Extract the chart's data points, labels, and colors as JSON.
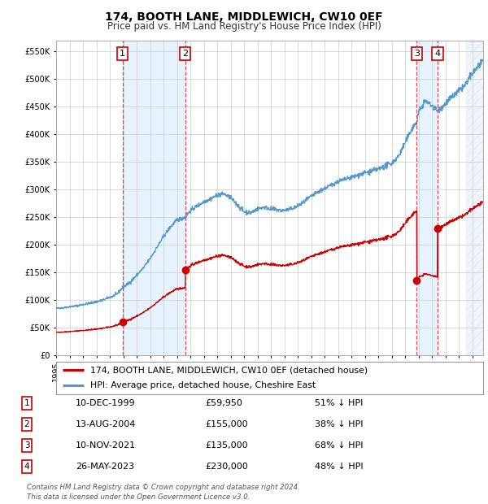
{
  "title": "174, BOOTH LANE, MIDDLEWICH, CW10 0EF",
  "subtitle": "Price paid vs. HM Land Registry's House Price Index (HPI)",
  "ytick_values": [
    0,
    50000,
    100000,
    150000,
    200000,
    250000,
    300000,
    350000,
    400000,
    450000,
    500000,
    550000
  ],
  "ylim": [
    0,
    570000
  ],
  "xlim_start": 1995.0,
  "xlim_end": 2026.8,
  "hpi_color": "#5599cc",
  "hpi_fill_color": "#cce0f0",
  "sale_color": "#cc0000",
  "dashed_color": "#dd3333",
  "background_color": "#ffffff",
  "legend_label_sale": "174, BOOTH LANE, MIDDLEWICH, CW10 0EF (detached house)",
  "legend_label_hpi": "HPI: Average price, detached house, Cheshire East",
  "sales": [
    {
      "id": 1,
      "date_num": 1999.94,
      "price": 59950,
      "hpi_at_sale": 122347
    },
    {
      "id": 2,
      "date_num": 2004.62,
      "price": 155000,
      "hpi_at_sale": 250000
    },
    {
      "id": 3,
      "date_num": 2021.86,
      "price": 135000,
      "hpi_at_sale": 421875
    },
    {
      "id": 4,
      "date_num": 2023.4,
      "price": 230000,
      "hpi_at_sale": 442308
    }
  ],
  "ownership_spans": [
    {
      "start": 1999.94,
      "end": 2004.62
    },
    {
      "start": 2021.86,
      "end": 2023.4
    }
  ],
  "table_rows": [
    {
      "num": "1",
      "date": "10-DEC-1999",
      "price": "£59,950",
      "pct": "51% ↓ HPI"
    },
    {
      "num": "2",
      "date": "13-AUG-2004",
      "price": "£155,000",
      "pct": "38% ↓ HPI"
    },
    {
      "num": "3",
      "date": "10-NOV-2021",
      "price": "£135,000",
      "pct": "68% ↓ HPI"
    },
    {
      "num": "4",
      "date": "26-MAY-2023",
      "price": "£230,000",
      "pct": "48% ↓ HPI"
    }
  ],
  "footnote": "Contains HM Land Registry data © Crown copyright and database right 2024.\nThis data is licensed under the Open Government Licence v3.0.",
  "xtick_years": [
    1995,
    1996,
    1997,
    1998,
    1999,
    2000,
    2001,
    2002,
    2003,
    2004,
    2005,
    2006,
    2007,
    2008,
    2009,
    2010,
    2011,
    2012,
    2013,
    2014,
    2015,
    2016,
    2017,
    2018,
    2019,
    2020,
    2021,
    2022,
    2023,
    2024,
    2025,
    2026
  ],
  "hatch_start": 2025.5,
  "hatch_end": 2026.8,
  "future_hpi_start": 2024.5
}
